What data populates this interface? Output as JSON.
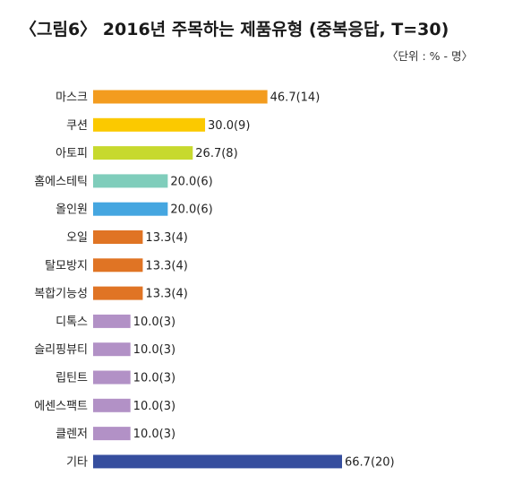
{
  "title": "〈그림6〉 2016년 주목하는 제품유형 (중복응답, T=30)",
  "unit": "〈단위 : % - 명〉",
  "chart_data": {
    "type": "bar",
    "orientation": "horizontal",
    "title": "〈그림6〉 2016년 주목하는 제품유형 (중복응답, T=30)",
    "unit_note": "〈단위 : % - 명〉",
    "categories": [
      "마스크",
      "쿠션",
      "아토피",
      "홈에스테틱",
      "올인원",
      "오일",
      "탈모방지",
      "복합기능성",
      "디톡스",
      "슬리핑뷰티",
      "립틴트",
      "에센스팩트",
      "클렌저",
      "기타"
    ],
    "values": [
      46.7,
      30.0,
      26.7,
      20.0,
      20.0,
      13.3,
      13.3,
      13.3,
      10.0,
      10.0,
      10.0,
      10.0,
      10.0,
      66.7
    ],
    "counts": [
      14,
      9,
      8,
      6,
      6,
      4,
      4,
      4,
      3,
      3,
      3,
      3,
      3,
      20
    ],
    "value_labels": [
      "46.7(14)",
      "30.0(9)",
      "26.7(8)",
      "20.0(6)",
      "20.0(6)",
      "13.3(4)",
      "13.3(4)",
      "13.3(4)",
      "10.0(3)",
      "10.0(3)",
      "10.0(3)",
      "10.0(3)",
      "10.0(3)",
      "66.7(20)"
    ],
    "colors": [
      "#f39c1f",
      "#fbc900",
      "#c7d92e",
      "#7fcdbb",
      "#45a6e0",
      "#e07424",
      "#e07424",
      "#e07424",
      "#b291c6",
      "#b291c6",
      "#b291c6",
      "#b291c6",
      "#b291c6",
      "#364e9e"
    ],
    "xlim": [
      0,
      66.7
    ],
    "grid": false,
    "legend": "none"
  }
}
